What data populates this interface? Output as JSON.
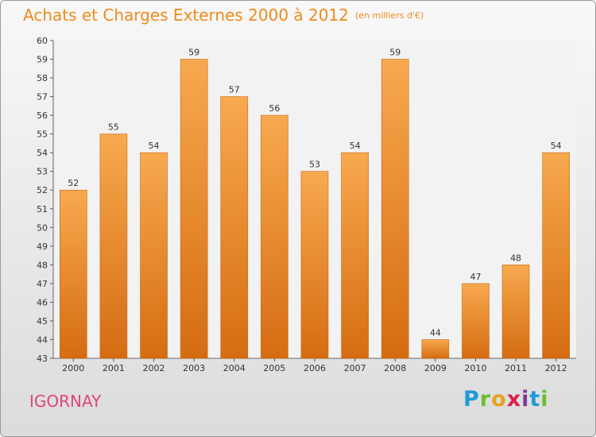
{
  "title": "Achats et Charges Externes 2000 à 2012",
  "subtitle": "(en milliers d'€)",
  "commune": "IGORNAY",
  "logo": {
    "letters": [
      "P",
      "r",
      "o",
      "x",
      "i",
      "t",
      "i"
    ],
    "colors": [
      "#1f9ad6",
      "#6abf2e",
      "#e8a21b",
      "#d9214a",
      "#7a3b96",
      "#1f9ad6",
      "#6abf2e"
    ]
  },
  "colors": {
    "bar_light": "#f8a94f",
    "bar_dark": "#d56c12",
    "title": "#f08a1a",
    "commune": "#e0457b"
  },
  "chart_data": {
    "type": "bar",
    "categories": [
      "2000",
      "2001",
      "2002",
      "2003",
      "2004",
      "2005",
      "2006",
      "2007",
      "2008",
      "2009",
      "2010",
      "2011",
      "2012"
    ],
    "values": [
      52,
      55,
      54,
      59,
      57,
      56,
      53,
      54,
      59,
      44,
      47,
      48,
      54
    ],
    "title": "Achats et Charges Externes 2000 à 2012",
    "ylim": [
      43,
      60
    ],
    "yticks": [
      43,
      44,
      45,
      46,
      47,
      48,
      49,
      50,
      51,
      52,
      53,
      54,
      55,
      56,
      57,
      58,
      59,
      60
    ],
    "grid": false,
    "legend": "none"
  }
}
